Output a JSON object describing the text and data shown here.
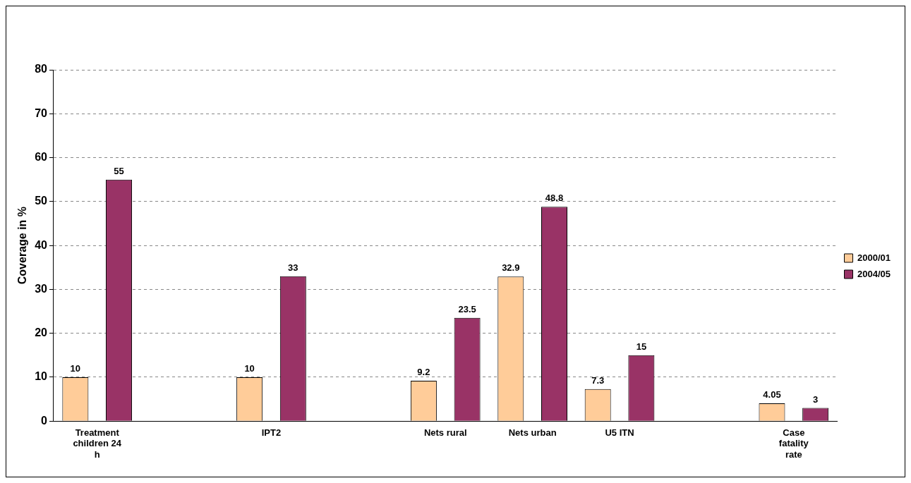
{
  "chart_data": {
    "type": "bar",
    "ylabel": "Coverage in %",
    "categories": [
      "Treatment children 24 h",
      null,
      "IPT2",
      null,
      "Nets rural",
      "Nets urban",
      "U5 ITN",
      null,
      "Case fatality rate"
    ],
    "series": [
      {
        "name": "2000/01",
        "color": "#ffcc99",
        "values": [
          10,
          null,
          10,
          null,
          9.2,
          32.9,
          7.3,
          null,
          4.05
        ]
      },
      {
        "name": "2004/05",
        "color": "#993366",
        "values": [
          55,
          null,
          33,
          null,
          23.5,
          48.8,
          15,
          null,
          3
        ]
      }
    ],
    "ylim": [
      0,
      80
    ],
    "yticks": [
      0,
      10,
      20,
      30,
      40,
      50,
      60,
      70,
      80
    ],
    "grid": "y",
    "legend": "right",
    "data_labels": true
  }
}
